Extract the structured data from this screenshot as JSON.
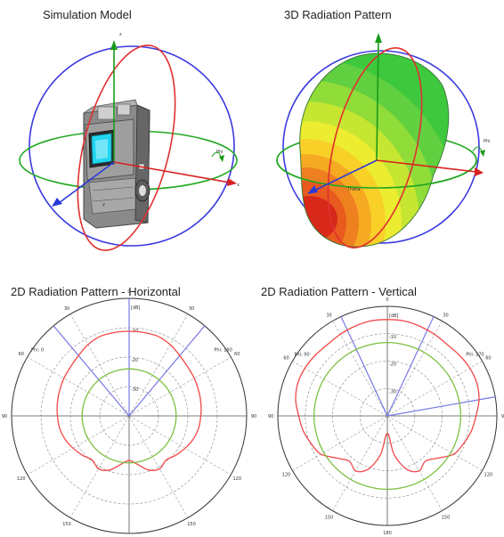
{
  "panels": {
    "model": {
      "title": "Simulation Model",
      "axis_labels": {
        "z": "z",
        "x": "x",
        "phi": "Phi",
        "y": "y"
      }
    },
    "pattern3d": {
      "title": "3D Radiation Pattern",
      "axis_labels": {
        "phi": "Phi",
        "theta": "Theta"
      }
    },
    "horizontal": {
      "title": "2D Radiation Pattern - Horizontal",
      "phi_left": "Phi: 0",
      "phi_right": "Phi: 180",
      "unit": "[dB]"
    },
    "vertical": {
      "title": "2D Radiation Pattern - Vertical",
      "phi_left": "Phi: 90",
      "phi_right": "Phi: 270",
      "unit": "[dB]"
    }
  },
  "polar": {
    "angle_labels": [
      "0",
      "30",
      "60",
      "90",
      "120",
      "150",
      "180",
      "150",
      "120",
      "90",
      "60",
      "30"
    ],
    "radial_labels": [
      "-10",
      "-20",
      "-30"
    ]
  },
  "colors": {
    "blue_ring": "#3a3ae0",
    "green_ring": "#22a822",
    "red_ring": "#e03030",
    "axis_green": "#1a9a1a",
    "axis_red": "#d82020",
    "axis_blue": "#2a3ad8",
    "pattern_red": "#f24848",
    "pattern_green": "#7cc040",
    "cyan": "#22d6f0"
  },
  "chart_data": [
    {
      "type": "polar",
      "title": "2D Radiation Pattern - Horizontal",
      "series": [
        {
          "theta_deg": [
            0,
            10,
            20,
            30,
            40,
            50,
            60,
            70,
            80,
            90,
            100,
            110,
            120,
            130,
            140,
            150,
            160,
            170,
            180
          ],
          "r": [
            0.72,
            0.72,
            0.72,
            0.7,
            0.67,
            0.65,
            0.64,
            0.63,
            0.62,
            0.61,
            0.6,
            0.58,
            0.55,
            0.52,
            0.49,
            0.52,
            0.49,
            0.42,
            0.38
          ]
        },
        {
          "theta_deg": [
            0,
            30,
            60,
            90,
            120,
            150,
            180
          ],
          "r": [
            0.4,
            0.4,
            0.4,
            0.4,
            0.4,
            0.4,
            0.4
          ]
        }
      ],
      "beam_lines_deg": [
        0,
        -40,
        40
      ]
    },
    {
      "type": "polar",
      "title": "2D Radiation Pattern - Vertical",
      "series": [
        {
          "theta_deg": [
            0,
            10,
            20,
            30,
            40,
            50,
            60,
            70,
            80,
            90,
            100,
            110,
            120,
            130,
            140,
            150,
            160,
            170,
            180
          ],
          "r": [
            0.88,
            0.88,
            0.87,
            0.86,
            0.85,
            0.86,
            0.87,
            0.87,
            0.85,
            0.81,
            0.78,
            0.74,
            0.7,
            0.6,
            0.54,
            0.58,
            0.52,
            0.36,
            0.16
          ]
        },
        {
          "theta_deg": [
            0,
            30,
            60,
            90,
            120,
            150,
            180
          ],
          "r": [
            0.67,
            0.67,
            0.67,
            0.67,
            0.67,
            0.67,
            0.67
          ]
        }
      ],
      "beam_lines_deg": [
        -25,
        25,
        80
      ]
    }
  ]
}
